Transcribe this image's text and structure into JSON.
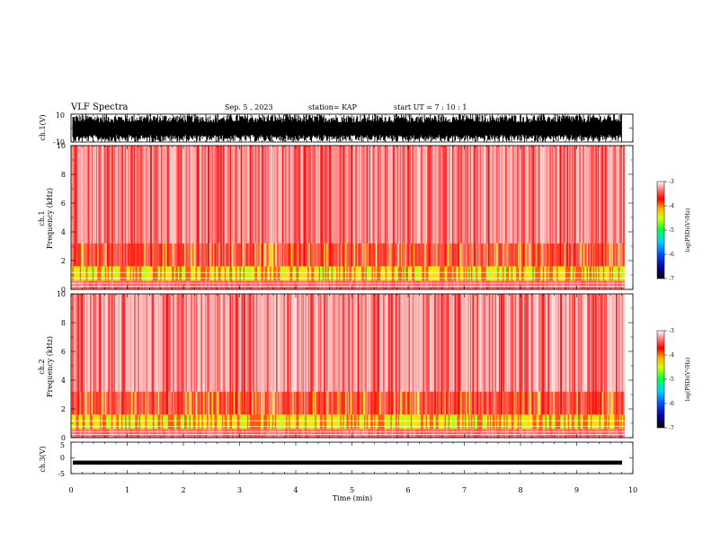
{
  "header": {
    "title": "VLF Spectra",
    "date": "Sep. 5 , 2023",
    "station": "station= KAP",
    "start": "start  UT =  7 : 10 : 1"
  },
  "chart_data": [
    {
      "type": "line",
      "name": "ch1-waveform",
      "ylabel": "ch.1(V)",
      "ylim": [
        -10,
        10
      ],
      "yticks": [
        "10",
        "-10"
      ],
      "xlim": [
        0,
        10
      ],
      "description_values": "dense black oscillation filling most of range"
    },
    {
      "type": "heatmap",
      "name": "ch1-spectrogram",
      "ylabel": "ch.1\nFrequency (kHz)",
      "ylabel_top": "ch.1",
      "ylabel_bottom": "Frequency (kHz)",
      "ylim": [
        0,
        10
      ],
      "yticks": [
        "0",
        "2",
        "4",
        "6",
        "8",
        "10"
      ],
      "xlim": [
        0,
        9.85
      ],
      "colorbar": {
        "min": -7,
        "max": -3,
        "ticks": [
          "-3",
          "-4",
          "-5",
          "-6",
          "-7"
        ],
        "label": "log(PSD)(V²/Hz)"
      }
    },
    {
      "type": "heatmap",
      "name": "ch2-spectrogram",
      "ylabel_top": "ch.2",
      "ylabel_bottom": "Frequency (kHz)",
      "ylim": [
        0,
        10
      ],
      "yticks": [
        "0",
        "2",
        "4",
        "6",
        "8",
        "10"
      ],
      "xlim": [
        0,
        9.85
      ],
      "colorbar": {
        "min": -7,
        "max": -3,
        "ticks": [
          "-3",
          "-4",
          "-5",
          "-6",
          "-7"
        ],
        "label": "log(PSD)(V²/Hz)"
      }
    },
    {
      "type": "line",
      "name": "ch3-waveform",
      "ylabel": "ch.3(V)",
      "ylim": [
        -5,
        5
      ],
      "yticks": [
        "5",
        "0",
        "-5"
      ],
      "xlim": [
        0,
        10
      ],
      "xlabel": "Time (min)",
      "xticks": [
        "0",
        "1",
        "2",
        "3",
        "4",
        "5",
        "6",
        "7",
        "8",
        "9",
        "10"
      ],
      "level": -1.5
    }
  ],
  "colors": {
    "low": "#000080",
    "mid1": "#00c0ff",
    "mid2": "#00ff00",
    "mid3": "#ffff00",
    "high": "#ff0000",
    "bg": "#ffffff"
  }
}
